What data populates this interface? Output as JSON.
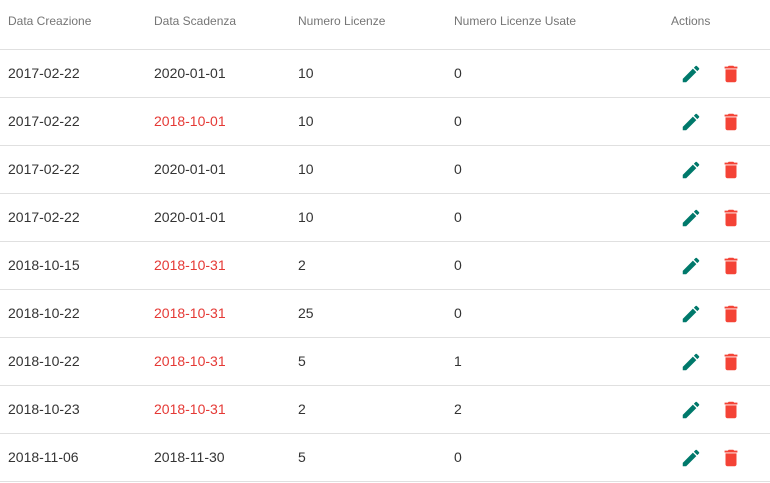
{
  "columns": {
    "creation_date": "Data Creazione",
    "expiry_date": "Data Scadenza",
    "licenses": "Numero Licenze",
    "licenses_used": "Numero Licenze Usate",
    "actions": "Actions"
  },
  "colors": {
    "edit_icon": "#00796b",
    "delete_icon": "#f44336",
    "expired_text": "#e53935"
  },
  "icons": {
    "edit": "pencil-icon",
    "delete": "trash-icon"
  },
  "rows": [
    {
      "created": "2017-02-22",
      "expires": "2020-01-01",
      "expired": false,
      "licenses": "10",
      "used": "0"
    },
    {
      "created": "2017-02-22",
      "expires": "2018-10-01",
      "expired": true,
      "licenses": "10",
      "used": "0"
    },
    {
      "created": "2017-02-22",
      "expires": "2020-01-01",
      "expired": false,
      "licenses": "10",
      "used": "0"
    },
    {
      "created": "2017-02-22",
      "expires": "2020-01-01",
      "expired": false,
      "licenses": "10",
      "used": "0"
    },
    {
      "created": "2018-10-15",
      "expires": "2018-10-31",
      "expired": true,
      "licenses": "2",
      "used": "0"
    },
    {
      "created": "2018-10-22",
      "expires": "2018-10-31",
      "expired": true,
      "licenses": "25",
      "used": "0"
    },
    {
      "created": "2018-10-22",
      "expires": "2018-10-31",
      "expired": true,
      "licenses": "5",
      "used": "1"
    },
    {
      "created": "2018-10-23",
      "expires": "2018-10-31",
      "expired": true,
      "licenses": "2",
      "used": "2"
    },
    {
      "created": "2018-11-06",
      "expires": "2018-11-30",
      "expired": false,
      "licenses": "5",
      "used": "0"
    }
  ]
}
